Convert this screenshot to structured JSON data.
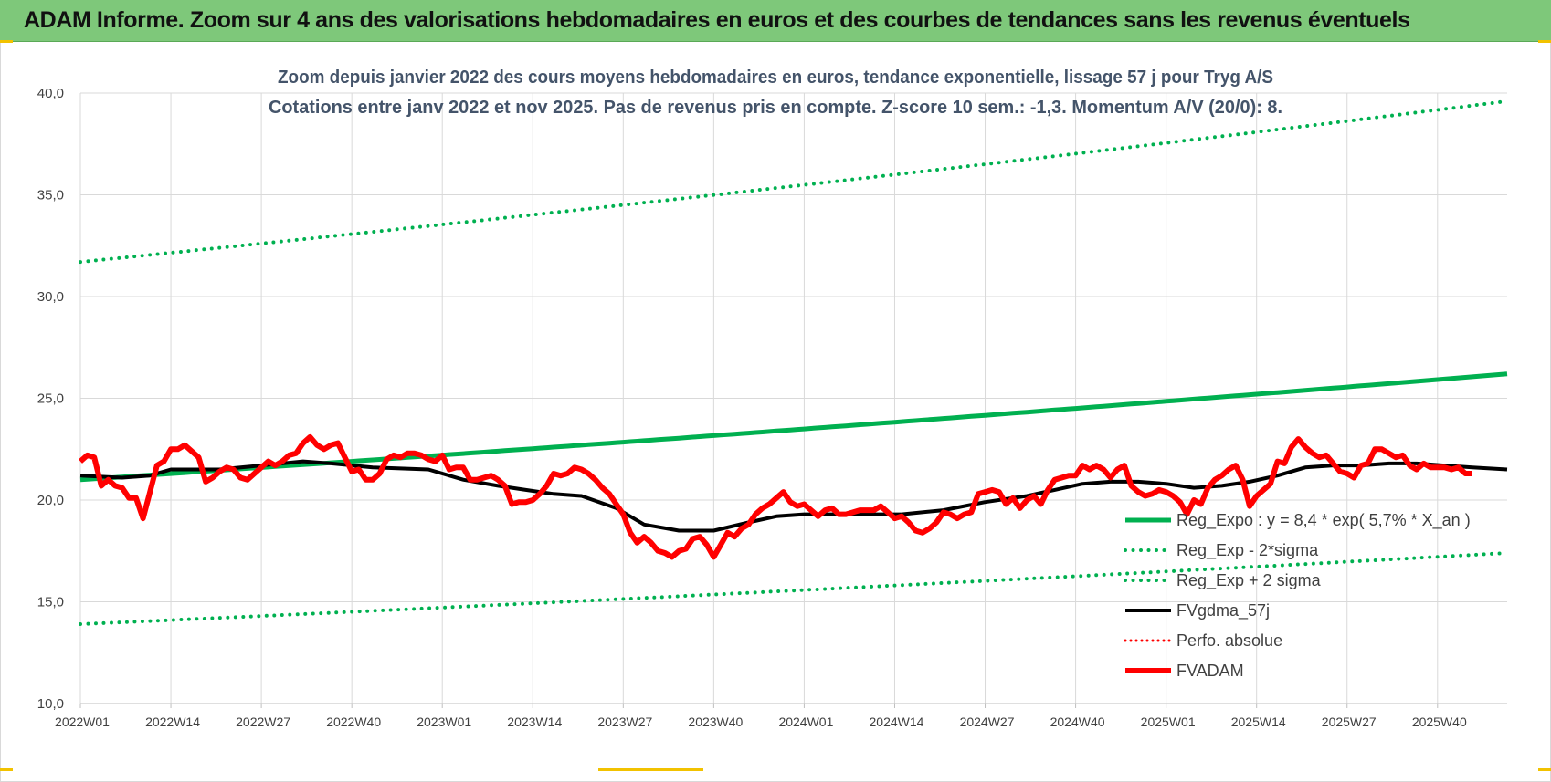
{
  "banner": {
    "title": "ADAM Informe. Zoom sur 4 ans des valorisations hebdomadaires en euros et des courbes de tendances sans les revenus éventuels"
  },
  "colors": {
    "banner": "#7ec87a",
    "trend": "#00b050",
    "fvgdma": "#000000",
    "fvadam": "#ff0000",
    "grid": "#d9d9d9"
  },
  "chart_data": {
    "type": "line",
    "title_lines": [
      "Zoom depuis janvier 2022 des cours moyens hebdomadaires en euros, tendance exponentielle, lissage 57 j pour Tryg A/S",
      "Cotations entre janv 2022 et nov 2025. Pas de revenus pris en compte. Z-score 10 sem.: -1,3. Momentum A/V (20/0): 8."
    ],
    "ylim": [
      10,
      40
    ],
    "y_ticks": [
      "10,0",
      "15,0",
      "20,0",
      "25,0",
      "30,0",
      "35,0",
      "40,0"
    ],
    "x_range_weeks": [
      0,
      205
    ],
    "x_ticks": [
      {
        "label": "2022W01",
        "week": 0
      },
      {
        "label": "2022W14",
        "week": 13
      },
      {
        "label": "2022W27",
        "week": 26
      },
      {
        "label": "2022W40",
        "week": 39
      },
      {
        "label": "2023W01",
        "week": 52
      },
      {
        "label": "2023W14",
        "week": 65
      },
      {
        "label": "2023W27",
        "week": 78
      },
      {
        "label": "2023W40",
        "week": 91
      },
      {
        "label": "2024W01",
        "week": 104
      },
      {
        "label": "2024W14",
        "week": 117
      },
      {
        "label": "2024W27",
        "week": 130
      },
      {
        "label": "2024W40",
        "week": 143
      },
      {
        "label": "2025W01",
        "week": 156
      },
      {
        "label": "2025W14",
        "week": 169
      },
      {
        "label": "2025W27",
        "week": 182
      },
      {
        "label": "2025W40",
        "week": 195
      }
    ],
    "legend": [
      {
        "label": "Reg_Expo : y = 8,4 * exp( 5,7% *  X_an )",
        "style": "solid-green"
      },
      {
        "label": "Reg_Exp - 2*sigma",
        "style": "dotted-green"
      },
      {
        "label": "Reg_Exp + 2 sigma",
        "style": "dotted-green"
      },
      {
        "label": "FVgdma_57j",
        "style": "solid-black"
      },
      {
        "label": "Perfo. absolue",
        "style": "dotted-red"
      },
      {
        "label": "FVADAM",
        "style": "solid-red"
      }
    ],
    "series": [
      {
        "name": "Reg_Expo : y = 8,4 * exp( 5,7% *  X_an )",
        "kind": "exp",
        "start": 21.0,
        "end": 26.2
      },
      {
        "name": "Reg_Exp - 2*sigma",
        "kind": "exp",
        "start": 13.9,
        "end": 17.4
      },
      {
        "name": "Reg_Exp + 2 sigma",
        "kind": "exp",
        "start": 31.7,
        "end": 39.6
      },
      {
        "name": "FVgdma_57j",
        "kind": "points",
        "points": [
          [
            0,
            21.2
          ],
          [
            6,
            21.1
          ],
          [
            10,
            21.2
          ],
          [
            13,
            21.5
          ],
          [
            20,
            21.5
          ],
          [
            26,
            21.7
          ],
          [
            32,
            21.9
          ],
          [
            36,
            21.8
          ],
          [
            42,
            21.6
          ],
          [
            50,
            21.5
          ],
          [
            55,
            21.0
          ],
          [
            60,
            20.7
          ],
          [
            64,
            20.5
          ],
          [
            68,
            20.3
          ],
          [
            72,
            20.2
          ],
          [
            77,
            19.6
          ],
          [
            81,
            18.8
          ],
          [
            86,
            18.5
          ],
          [
            91,
            18.5
          ],
          [
            96,
            18.9
          ],
          [
            100,
            19.2
          ],
          [
            104,
            19.3
          ],
          [
            110,
            19.3
          ],
          [
            118,
            19.3
          ],
          [
            124,
            19.5
          ],
          [
            130,
            19.9
          ],
          [
            136,
            20.2
          ],
          [
            140,
            20.5
          ],
          [
            144,
            20.8
          ],
          [
            148,
            20.9
          ],
          [
            152,
            20.9
          ],
          [
            156,
            20.8
          ],
          [
            160,
            20.6
          ],
          [
            164,
            20.7
          ],
          [
            168,
            20.9
          ],
          [
            172,
            21.2
          ],
          [
            176,
            21.6
          ],
          [
            180,
            21.7
          ],
          [
            184,
            21.7
          ],
          [
            188,
            21.8
          ],
          [
            192,
            21.8
          ],
          [
            196,
            21.7
          ],
          [
            200,
            21.6
          ],
          [
            205,
            21.5
          ]
        ]
      },
      {
        "name": "FVADAM",
        "kind": "points",
        "points": [
          [
            0,
            21.9
          ],
          [
            1,
            22.2
          ],
          [
            2,
            22.1
          ],
          [
            3,
            20.7
          ],
          [
            4,
            21.0
          ],
          [
            5,
            20.7
          ],
          [
            6,
            20.6
          ],
          [
            7,
            20.1
          ],
          [
            8,
            20.1
          ],
          [
            9,
            19.1
          ],
          [
            10,
            20.4
          ],
          [
            11,
            21.7
          ],
          [
            12,
            21.9
          ],
          [
            13,
            22.5
          ],
          [
            14,
            22.5
          ],
          [
            15,
            22.7
          ],
          [
            16,
            22.4
          ],
          [
            17,
            22.1
          ],
          [
            18,
            20.9
          ],
          [
            19,
            21.1
          ],
          [
            20,
            21.4
          ],
          [
            21,
            21.6
          ],
          [
            22,
            21.5
          ],
          [
            23,
            21.1
          ],
          [
            24,
            21.0
          ],
          [
            25,
            21.3
          ],
          [
            26,
            21.6
          ],
          [
            27,
            21.9
          ],
          [
            28,
            21.7
          ],
          [
            29,
            21.9
          ],
          [
            30,
            22.2
          ],
          [
            31,
            22.3
          ],
          [
            32,
            22.8
          ],
          [
            33,
            23.1
          ],
          [
            34,
            22.7
          ],
          [
            35,
            22.5
          ],
          [
            36,
            22.7
          ],
          [
            37,
            22.8
          ],
          [
            38,
            22.1
          ],
          [
            39,
            21.4
          ],
          [
            40,
            21.5
          ],
          [
            41,
            21.0
          ],
          [
            42,
            21.0
          ],
          [
            43,
            21.3
          ],
          [
            44,
            22.0
          ],
          [
            45,
            22.2
          ],
          [
            46,
            22.1
          ],
          [
            47,
            22.3
          ],
          [
            48,
            22.3
          ],
          [
            49,
            22.2
          ],
          [
            50,
            22.0
          ],
          [
            51,
            21.9
          ],
          [
            52,
            22.2
          ],
          [
            53,
            21.5
          ],
          [
            54,
            21.6
          ],
          [
            55,
            21.6
          ],
          [
            56,
            21.0
          ],
          [
            57,
            21.0
          ],
          [
            58,
            21.1
          ],
          [
            59,
            21.2
          ],
          [
            60,
            21.0
          ],
          [
            61,
            20.7
          ],
          [
            62,
            19.8
          ],
          [
            63,
            19.9
          ],
          [
            64,
            19.9
          ],
          [
            65,
            20.0
          ],
          [
            66,
            20.3
          ],
          [
            67,
            20.7
          ],
          [
            68,
            21.3
          ],
          [
            69,
            21.2
          ],
          [
            70,
            21.3
          ],
          [
            71,
            21.6
          ],
          [
            72,
            21.5
          ],
          [
            73,
            21.3
          ],
          [
            74,
            21.0
          ],
          [
            75,
            20.6
          ],
          [
            76,
            20.3
          ],
          [
            77,
            19.8
          ],
          [
            78,
            19.3
          ],
          [
            79,
            18.4
          ],
          [
            80,
            17.9
          ],
          [
            81,
            18.2
          ],
          [
            82,
            17.9
          ],
          [
            83,
            17.5
          ],
          [
            84,
            17.4
          ],
          [
            85,
            17.2
          ],
          [
            86,
            17.5
          ],
          [
            87,
            17.6
          ],
          [
            88,
            18.1
          ],
          [
            89,
            18.2
          ],
          [
            90,
            17.8
          ],
          [
            91,
            17.2
          ],
          [
            92,
            17.8
          ],
          [
            93,
            18.4
          ],
          [
            94,
            18.2
          ],
          [
            95,
            18.6
          ],
          [
            96,
            18.8
          ],
          [
            97,
            19.3
          ],
          [
            98,
            19.6
          ],
          [
            99,
            19.8
          ],
          [
            100,
            20.1
          ],
          [
            101,
            20.4
          ],
          [
            102,
            19.9
          ],
          [
            103,
            19.7
          ],
          [
            104,
            19.8
          ],
          [
            105,
            19.5
          ],
          [
            106,
            19.2
          ],
          [
            107,
            19.5
          ],
          [
            108,
            19.6
          ],
          [
            109,
            19.3
          ],
          [
            110,
            19.3
          ],
          [
            111,
            19.4
          ],
          [
            112,
            19.5
          ],
          [
            113,
            19.5
          ],
          [
            114,
            19.5
          ],
          [
            115,
            19.7
          ],
          [
            116,
            19.4
          ],
          [
            117,
            19.1
          ],
          [
            118,
            19.2
          ],
          [
            119,
            18.9
          ],
          [
            120,
            18.5
          ],
          [
            121,
            18.4
          ],
          [
            122,
            18.6
          ],
          [
            123,
            18.9
          ],
          [
            124,
            19.4
          ],
          [
            125,
            19.3
          ],
          [
            126,
            19.1
          ],
          [
            127,
            19.3
          ],
          [
            128,
            19.4
          ],
          [
            129,
            20.3
          ],
          [
            130,
            20.4
          ],
          [
            131,
            20.5
          ],
          [
            132,
            20.4
          ],
          [
            133,
            19.8
          ],
          [
            134,
            20.1
          ],
          [
            135,
            19.6
          ],
          [
            136,
            20.0
          ],
          [
            137,
            20.2
          ],
          [
            138,
            19.8
          ],
          [
            139,
            20.5
          ],
          [
            140,
            21.0
          ],
          [
            141,
            21.1
          ],
          [
            142,
            21.2
          ],
          [
            143,
            21.2
          ],
          [
            144,
            21.7
          ],
          [
            145,
            21.5
          ],
          [
            146,
            21.7
          ],
          [
            147,
            21.5
          ],
          [
            148,
            21.1
          ],
          [
            149,
            21.5
          ],
          [
            150,
            21.7
          ],
          [
            151,
            20.7
          ],
          [
            152,
            20.4
          ],
          [
            153,
            20.2
          ],
          [
            154,
            20.3
          ],
          [
            155,
            20.5
          ],
          [
            156,
            20.4
          ],
          [
            157,
            20.2
          ],
          [
            158,
            19.9
          ],
          [
            159,
            19.3
          ],
          [
            160,
            20.0
          ],
          [
            161,
            19.8
          ],
          [
            162,
            20.6
          ],
          [
            163,
            21.0
          ],
          [
            164,
            21.2
          ],
          [
            165,
            21.5
          ],
          [
            166,
            21.7
          ],
          [
            167,
            21.0
          ],
          [
            168,
            19.7
          ],
          [
            169,
            20.2
          ],
          [
            170,
            20.5
          ],
          [
            171,
            20.8
          ],
          [
            172,
            21.9
          ],
          [
            173,
            21.8
          ],
          [
            174,
            22.6
          ],
          [
            175,
            23.0
          ],
          [
            176,
            22.6
          ],
          [
            177,
            22.3
          ],
          [
            178,
            22.1
          ],
          [
            179,
            22.2
          ],
          [
            180,
            21.8
          ],
          [
            181,
            21.4
          ],
          [
            182,
            21.3
          ],
          [
            183,
            21.1
          ],
          [
            184,
            21.7
          ],
          [
            185,
            21.8
          ],
          [
            186,
            22.5
          ],
          [
            187,
            22.5
          ],
          [
            188,
            22.3
          ],
          [
            189,
            22.1
          ],
          [
            190,
            22.2
          ],
          [
            191,
            21.7
          ],
          [
            192,
            21.5
          ],
          [
            193,
            21.8
          ],
          [
            194,
            21.6
          ],
          [
            195,
            21.6
          ],
          [
            196,
            21.6
          ],
          [
            197,
            21.5
          ],
          [
            198,
            21.6
          ],
          [
            199,
            21.3
          ],
          [
            200,
            21.3
          ]
        ]
      }
    ]
  }
}
